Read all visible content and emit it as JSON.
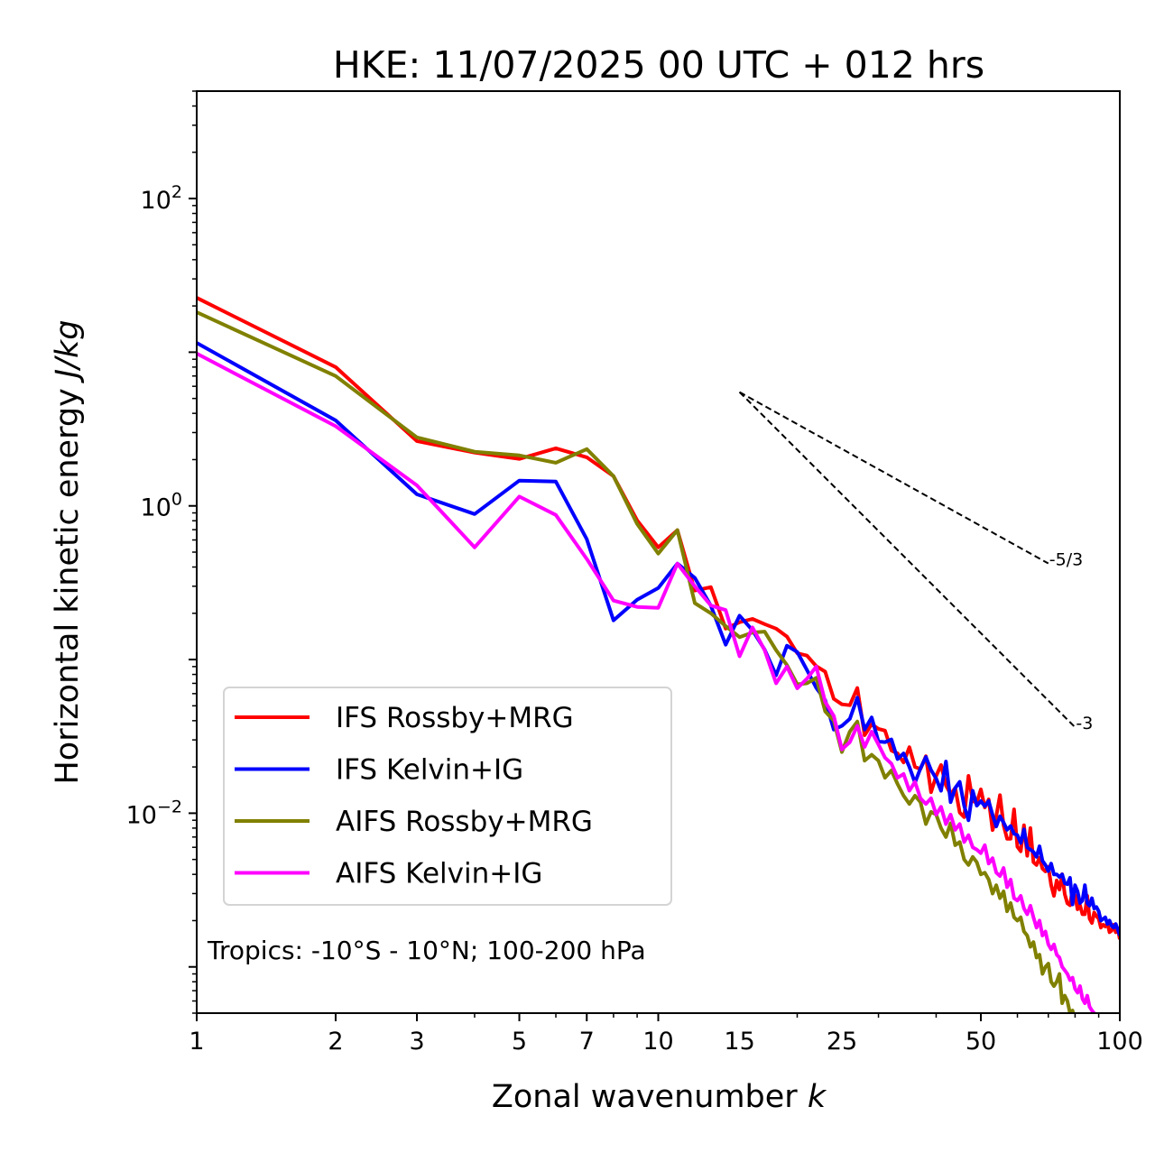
{
  "chart_data": {
    "type": "line",
    "title": "HKE: 11/07/2025 00 UTC + 012 hrs",
    "xlabel": "Zonal wavenumber",
    "xlabel_italic": "k",
    "ylabel": "Horizontal kinetic energy",
    "ylabel_italic": "J/kg",
    "xscale": "log",
    "yscale": "log",
    "xlim": [
      1,
      100
    ],
    "ylim": [
      0.0005,
      500
    ],
    "x_ticks": [
      1,
      2,
      3,
      5,
      7,
      10,
      15,
      25,
      50,
      100
    ],
    "x_tick_labels": [
      "1",
      "2",
      "3",
      "5",
      "7",
      "10",
      "15",
      "25",
      "50",
      "100"
    ],
    "y_ticks": [
      0.01,
      1,
      100
    ],
    "y_tick_labels": [
      {
        "base": "10",
        "exp": "−2"
      },
      {
        "base": "10",
        "exp": "0"
      },
      {
        "base": "10",
        "exp": "2"
      }
    ],
    "grid": false,
    "legend_position": "lower-left",
    "annotation": "Tropics: -10°S - 10°N; 100-200 hPa",
    "reference_slopes": [
      {
        "label": "-5/3",
        "slope": -1.6667,
        "k_start": 15,
        "k_end": 70,
        "E_start": 5.5
      },
      {
        "label": "-3",
        "slope": -3,
        "k_start": 15,
        "k_end": 80,
        "E_start": 5.5
      }
    ],
    "x": [
      1,
      2,
      3,
      4,
      5,
      6,
      7,
      8,
      9,
      10,
      11,
      12,
      13,
      14,
      15,
      16,
      17,
      18,
      19,
      20,
      21,
      22,
      23,
      24,
      25,
      26,
      27,
      28,
      29,
      30,
      31,
      32,
      33,
      34,
      35,
      36,
      37,
      38,
      39,
      40,
      41,
      42,
      43,
      44,
      45,
      46,
      47,
      48,
      49,
      50,
      51,
      52,
      53,
      54,
      55,
      56,
      57,
      58,
      59,
      60,
      61,
      62,
      63,
      64,
      65,
      66,
      67,
      68,
      69,
      70,
      71,
      72,
      73,
      74,
      75,
      76,
      77,
      78,
      79,
      80,
      81,
      82,
      83,
      84,
      85,
      86,
      87,
      88,
      89,
      90,
      91,
      92,
      93,
      94,
      95,
      96,
      97,
      98,
      99,
      100
    ],
    "series": [
      {
        "name": "IFS Rossby+MRG",
        "color": "#ff0000",
        "values": [
          22.6,
          8.0,
          2.64,
          2.22,
          2.02,
          2.37,
          2.07,
          1.56,
          0.805,
          0.537,
          0.695,
          0.281,
          0.296,
          0.159,
          0.175,
          0.184,
          0.17,
          0.159,
          0.141,
          0.11,
          0.106,
          0.0906,
          0.0834,
          0.0555,
          0.0511,
          0.0504,
          0.0653,
          0.0322,
          0.0379,
          0.0354,
          0.0345,
          0.0256,
          0.0245,
          0.0214,
          0.0269,
          0.02,
          0.0194,
          0.0235,
          0.0137,
          0.0175,
          0.0206,
          0.0152,
          0.0133,
          0.0146,
          0.0101,
          0.00943,
          0.0175,
          0.012,
          0.0117,
          0.0143,
          0.0109,
          0.0123,
          0.00777,
          0.00956,
          0.0131,
          0.00835,
          0.00682,
          0.00682,
          0.0106,
          0.00605,
          0.00565,
          0.00835,
          0.00528,
          0.008,
          0.0048,
          0.0046,
          0.00514,
          0.00436,
          0.00418,
          0.00448,
          0.00341,
          0.0029,
          0.00365,
          0.00318,
          0.00401,
          0.00297,
          0.00259,
          0.00252,
          0.00318,
          0.0029,
          0.00237,
          0.00252,
          0.0022,
          0.0022,
          0.0029,
          0.00206,
          0.00193,
          0.00226,
          0.00214,
          0.00206,
          0.0018,
          0.00188,
          0.00183,
          0.00193,
          0.00168,
          0.00172,
          0.00188,
          0.00168,
          0.00178,
          0.00151
        ]
      },
      {
        "name": "IFS Kelvin+IG",
        "color": "#0000ff",
        "values": [
          11.5,
          3.6,
          1.19,
          0.885,
          1.46,
          1.44,
          0.607,
          0.18,
          0.245,
          0.292,
          0.421,
          0.34,
          0.224,
          0.125,
          0.193,
          0.155,
          0.116,
          0.079,
          0.123,
          0.112,
          0.0854,
          0.0655,
          0.0545,
          0.035,
          0.037,
          0.0411,
          0.0565,
          0.035,
          0.042,
          0.0293,
          0.029,
          0.0302,
          0.0225,
          0.0245,
          0.02,
          0.0158,
          0.0196,
          0.0232,
          0.0191,
          0.0168,
          0.014,
          0.0217,
          0.0118,
          0.0146,
          0.016,
          0.0112,
          0.009,
          0.014,
          0.0112,
          0.012,
          0.0111,
          0.012,
          0.00975,
          0.0082,
          0.00955,
          0.0087,
          0.0078,
          0.00825,
          0.00735,
          0.0072,
          0.0064,
          0.00785,
          0.006,
          0.0058,
          0.0056,
          0.0052,
          0.0061,
          0.0049,
          0.0046,
          0.0042,
          0.0047,
          0.004,
          0.004,
          0.00385,
          0.004,
          0.0035,
          0.00345,
          0.0038,
          0.00255,
          0.0034,
          0.0031,
          0.0026,
          0.0027,
          0.0034,
          0.0026,
          0.0025,
          0.0028,
          0.0024,
          0.00245,
          0.0023,
          0.002,
          0.00205,
          0.0021,
          0.0019,
          0.002,
          0.00185,
          0.0018,
          0.0019,
          0.00175,
          0.0016
        ]
      },
      {
        "name": "AIFS Rossby+MRG",
        "color": "#808000",
        "values": [
          18.2,
          7.0,
          2.79,
          2.25,
          2.13,
          1.91,
          2.34,
          1.56,
          0.763,
          0.489,
          0.695,
          0.233,
          0.2,
          0.165,
          0.14,
          0.15,
          0.152,
          0.115,
          0.092,
          0.069,
          0.07,
          0.076,
          0.046,
          0.04,
          0.025,
          0.034,
          0.0395,
          0.022,
          0.024,
          0.022,
          0.017,
          0.019,
          0.0155,
          0.013,
          0.0115,
          0.013,
          0.0118,
          0.0085,
          0.0102,
          0.0098,
          0.008,
          0.007,
          0.0086,
          0.0062,
          0.0065,
          0.005,
          0.0046,
          0.0052,
          0.0048,
          0.004,
          0.0041,
          0.0037,
          0.003,
          0.0034,
          0.0028,
          0.0031,
          0.0023,
          0.0026,
          0.0021,
          0.002,
          0.0021,
          0.0017,
          0.0016,
          0.00135,
          0.00145,
          0.00115,
          0.0012,
          0.0009,
          0.001,
          0.00105,
          0.0008,
          0.00075,
          0.0008,
          0.0009,
          0.00058,
          0.00065,
          0.0006,
          0.0005,
          0.00052,
          0.00045,
          0.0004,
          0.00038,
          0.00035,
          0.00032,
          0.0003,
          0.00028,
          0.00026,
          0.00025,
          0.00023,
          0.00022,
          0.0002,
          0.00019,
          0.00018,
          0.00017,
          0.00016,
          0.00015,
          0.00014,
          0.00013,
          0.00012,
          0.00011
        ]
      },
      {
        "name": "AIFS Kelvin+IG",
        "color": "#ff00ff",
        "values": [
          9.8,
          3.3,
          1.36,
          0.537,
          1.15,
          0.873,
          0.451,
          0.242,
          0.22,
          0.217,
          0.421,
          0.3,
          0.225,
          0.21,
          0.105,
          0.162,
          0.115,
          0.07,
          0.09,
          0.065,
          0.075,
          0.09,
          0.053,
          0.043,
          0.026,
          0.029,
          0.037,
          0.027,
          0.034,
          0.028,
          0.023,
          0.021,
          0.017,
          0.018,
          0.014,
          0.016,
          0.0125,
          0.0115,
          0.0125,
          0.0098,
          0.011,
          0.0085,
          0.0098,
          0.0078,
          0.0085,
          0.0065,
          0.0072,
          0.006,
          0.0058,
          0.0055,
          0.0062,
          0.0047,
          0.0051,
          0.0041,
          0.0039,
          0.0044,
          0.0033,
          0.0037,
          0.0028,
          0.0027,
          0.0029,
          0.0024,
          0.0022,
          0.0025,
          0.0021,
          0.0018,
          0.002,
          0.0016,
          0.0017,
          0.0014,
          0.0013,
          0.0014,
          0.0012,
          0.00115,
          0.001,
          0.00095,
          0.0009,
          0.00082,
          0.00085,
          0.00072,
          0.00068,
          0.00075,
          0.00062,
          0.00058,
          0.00065,
          0.00055,
          0.00052,
          0.0005,
          0.00048,
          0.00049,
          0.0004,
          0.00038,
          0.00036,
          0.00034,
          0.00032,
          0.0003,
          0.00028,
          0.00026,
          0.00024,
          0.00022
        ]
      }
    ]
  }
}
